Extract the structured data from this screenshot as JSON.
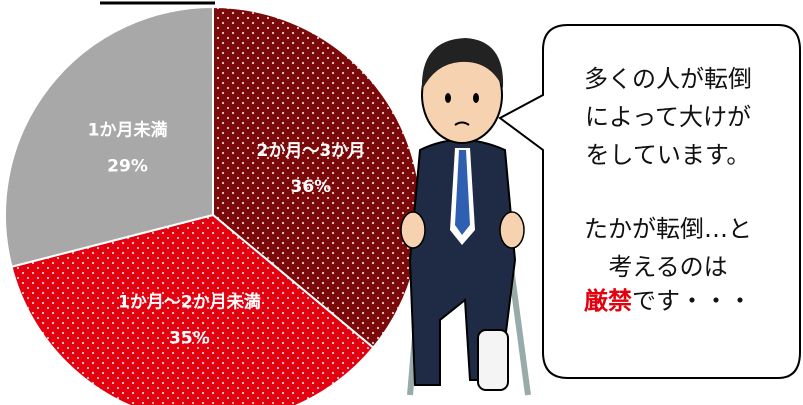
{
  "chart_data": {
    "type": "pie",
    "categories": [
      "2か月～3か月",
      "1か月～2か月未満",
      "1か月未満"
    ],
    "values": [
      36,
      35,
      29
    ],
    "value_labels": [
      "36%",
      "35%",
      "29%"
    ],
    "colors": [
      "#7a0a0a",
      "#e3000f",
      "#a8a8a8"
    ],
    "dotted": [
      true,
      true,
      false
    ]
  },
  "speech_bubble": {
    "lines": [
      "多くの人が転倒",
      "によって大けが",
      "をしています。",
      "たかが転倒…と",
      "考えるのは"
    ],
    "emphasis": "厳禁",
    "ending": "です・・・"
  }
}
